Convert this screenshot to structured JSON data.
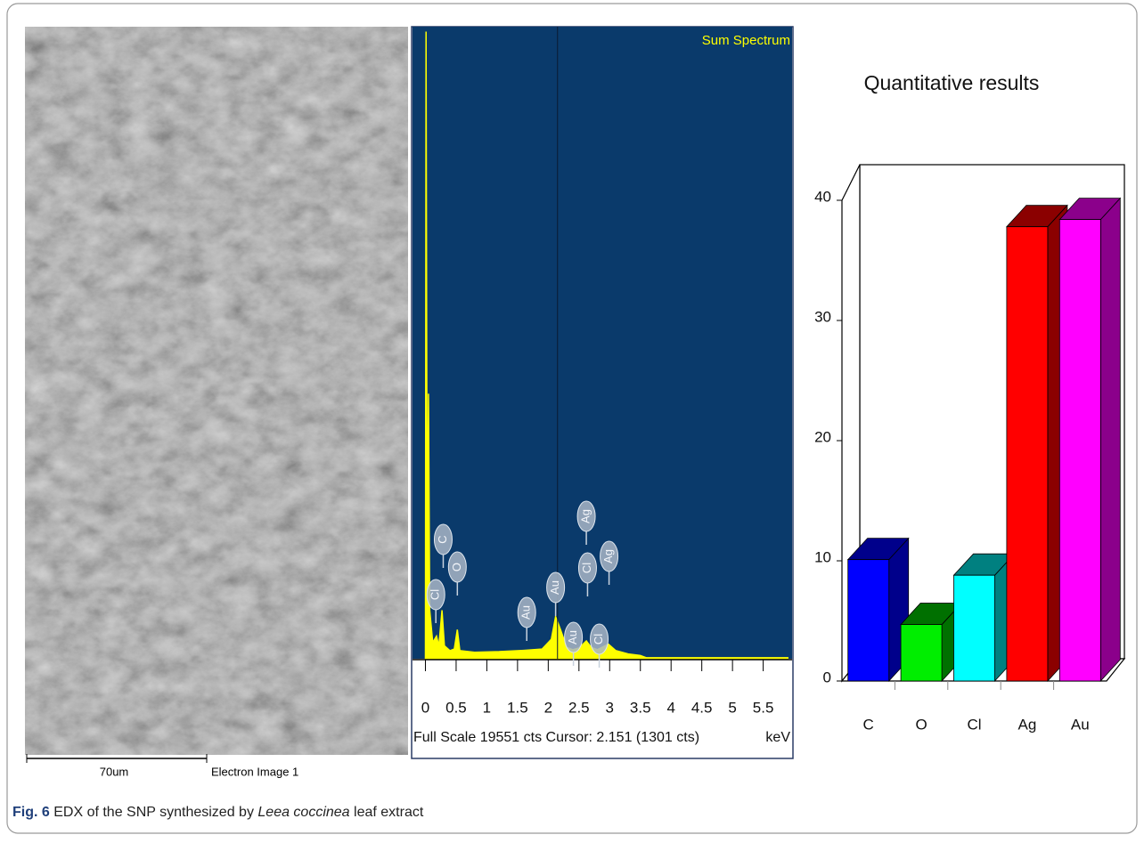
{
  "sem_image": {
    "scale_label": "70um",
    "image_label": "Electron Image 1"
  },
  "chart_data": [
    {
      "type": "area",
      "title": "Sum Spectrum",
      "x_label": "keV",
      "footer": "Full Scale 19551 cts Cursor: 2.151 (1301 cts)",
      "cursor": 2.151,
      "color": "#ffff00",
      "background": "#0a3a6b",
      "x": [
        0,
        0.01,
        0.03,
        0.05,
        0.07,
        0.12,
        0.18,
        0.22,
        0.27,
        0.31,
        0.4,
        0.47,
        0.52,
        0.56,
        0.8,
        1.2,
        1.6,
        1.9,
        2.05,
        2.12,
        2.2,
        2.3,
        2.4,
        2.5,
        2.62,
        2.7,
        2.8,
        2.98,
        3.1,
        3.3,
        3.5,
        3.6,
        5.9
      ],
      "values": [
        300,
        19400,
        2000,
        8200,
        1500,
        500,
        700,
        400,
        1500,
        400,
        250,
        300,
        900,
        250,
        200,
        220,
        260,
        300,
        600,
        1300,
        900,
        350,
        280,
        330,
        550,
        350,
        280,
        450,
        250,
        150,
        100,
        30,
        30
      ],
      "xlim": [
        -0.21,
        5.97
      ],
      "ylim": [
        0,
        19551
      ],
      "xticks": [
        0,
        0.5,
        1,
        1.5,
        2,
        2.5,
        3,
        3.5,
        4,
        4.5,
        5,
        5.5
      ],
      "annotations": [
        {
          "text": "Cl",
          "x": 0.17
        },
        {
          "text": "C",
          "x": 0.29
        },
        {
          "text": "O",
          "x": 0.52
        },
        {
          "text": "Au",
          "x": 1.65
        },
        {
          "text": "Au",
          "x": 2.12
        },
        {
          "text": "Au",
          "x": 2.41
        },
        {
          "text": "Ag",
          "x": 2.62
        },
        {
          "text": "Cl",
          "x": 2.64
        },
        {
          "text": "Cl",
          "x": 2.83
        },
        {
          "text": "Ag",
          "x": 2.99
        }
      ]
    },
    {
      "type": "bar3d",
      "title": "Quantitative results",
      "categories": [
        "C",
        "O",
        "Cl",
        "Ag",
        "Au"
      ],
      "values": [
        10.1,
        4.7,
        8.8,
        37.8,
        38.4
      ],
      "colors": [
        "#0000ff",
        "#00ee00",
        "#00ffff",
        "#ff0000",
        "#ff00ff"
      ],
      "shades": [
        "#00008b",
        "#007000",
        "#008080",
        "#8b0000",
        "#8b008b"
      ],
      "ylim": [
        0,
        40
      ],
      "yticks": [
        0,
        10,
        20,
        30,
        40
      ]
    }
  ],
  "caption": {
    "label": "Fig. 6",
    "text": " EDX of the SNP synthesized by ",
    "species": "Leea coccinea",
    "tail": " leaf extract"
  }
}
